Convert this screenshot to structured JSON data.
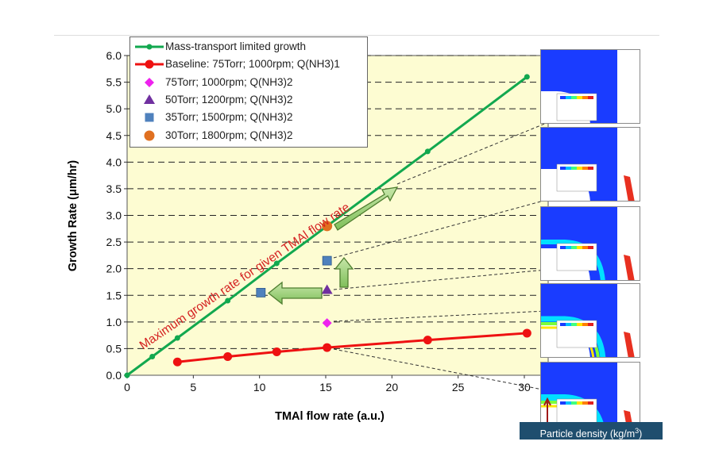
{
  "chart_data": {
    "type": "line",
    "xlabel": "TMAl flow rate (a.u.)",
    "ylabel": "Growth Rate (μm/hr)",
    "xlim": [
      0,
      32
    ],
    "ylim": [
      0,
      6.0
    ],
    "xticks": [
      0,
      5,
      10,
      15,
      20,
      25,
      30
    ],
    "yticks": [
      "0.0",
      "0.5",
      "1.0",
      "1.5",
      "2.0",
      "2.5",
      "3.0",
      "3.5",
      "4.0",
      "4.5",
      "5.0",
      "5.5",
      "6.0"
    ],
    "series": [
      {
        "name": "Mass-transport limited growth",
        "color": "#12a84f",
        "kind": "line",
        "x": [
          0,
          1.9,
          3.8,
          7.6,
          11.3,
          15.1,
          22.7,
          30.2
        ],
        "y": [
          0.0,
          0.35,
          0.7,
          1.4,
          2.1,
          2.8,
          4.2,
          5.6
        ]
      },
      {
        "name": "Baseline: 75Torr; 1000rpm; Q(NH3)1",
        "color": "#ee1111",
        "kind": "line",
        "x": [
          3.8,
          7.6,
          11.3,
          15.1,
          22.7,
          30.2
        ],
        "y": [
          0.25,
          0.35,
          0.44,
          0.52,
          0.66,
          0.79
        ]
      },
      {
        "name": "75Torr; 1000rpm; Q(NH3)2",
        "color": "#ee22ee",
        "kind": "diamond",
        "x": [
          15.1
        ],
        "y": [
          0.98
        ]
      },
      {
        "name": "50Torr; 1200rpm; Q(NH3)2",
        "color": "#7030a0",
        "kind": "triangle",
        "x": [
          15.1
        ],
        "y": [
          1.6
        ]
      },
      {
        "name": "35Torr; 1500rpm; Q(NH3)2",
        "color": "#4f81bd",
        "kind": "square",
        "x": [
          10.1,
          15.1
        ],
        "y": [
          1.55,
          2.15
        ]
      },
      {
        "name": "30Torr; 1800rpm; Q(NH3)2",
        "color": "#e07020",
        "kind": "circle",
        "x": [
          15.1
        ],
        "y": [
          2.8
        ]
      }
    ],
    "annotation": "Maximum growth rate for given TMAl flow rate"
  },
  "badge": {
    "text_main": "Particle density (kg/m",
    "text_sup": "3",
    "text_end": ")"
  }
}
